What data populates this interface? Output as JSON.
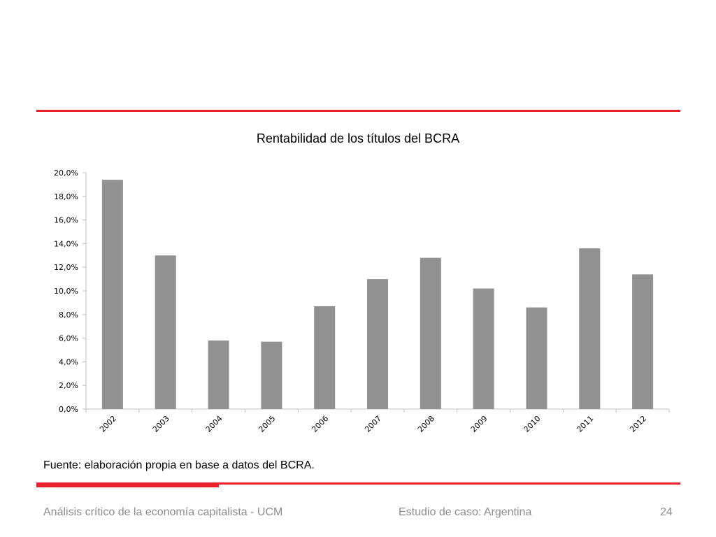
{
  "slide": {
    "source_note": "Fuente: elaboración propia en base a datos del BCRA.",
    "footer_left": "Análisis crítico de la economía capitalista - UCM",
    "footer_center": "Estudio de caso: Argentina",
    "page_number": "24"
  },
  "colors": {
    "accent": "#e8202a",
    "bar": "#919191",
    "axis": "#bfbfbf",
    "footer_text": "#8c8c8c"
  },
  "chart_data": {
    "type": "bar",
    "title": "Rentabilidad de los títulos del BCRA",
    "xlabel": "",
    "ylabel": "",
    "categories": [
      "2002",
      "2003",
      "2004",
      "2005",
      "2006",
      "2007",
      "2008",
      "2009",
      "2010",
      "2011",
      "2012"
    ],
    "values": [
      19.4,
      13.0,
      5.8,
      5.7,
      8.7,
      11.0,
      12.8,
      10.2,
      8.6,
      13.6,
      11.4
    ],
    "ylim": [
      0,
      20
    ],
    "y_ticks": [
      "0,0%",
      "2,0%",
      "4,0%",
      "6,0%",
      "8,0%",
      "10,0%",
      "12,0%",
      "14,0%",
      "16,0%",
      "18,0%",
      "20,0%"
    ],
    "grid": false,
    "legend": "none"
  }
}
